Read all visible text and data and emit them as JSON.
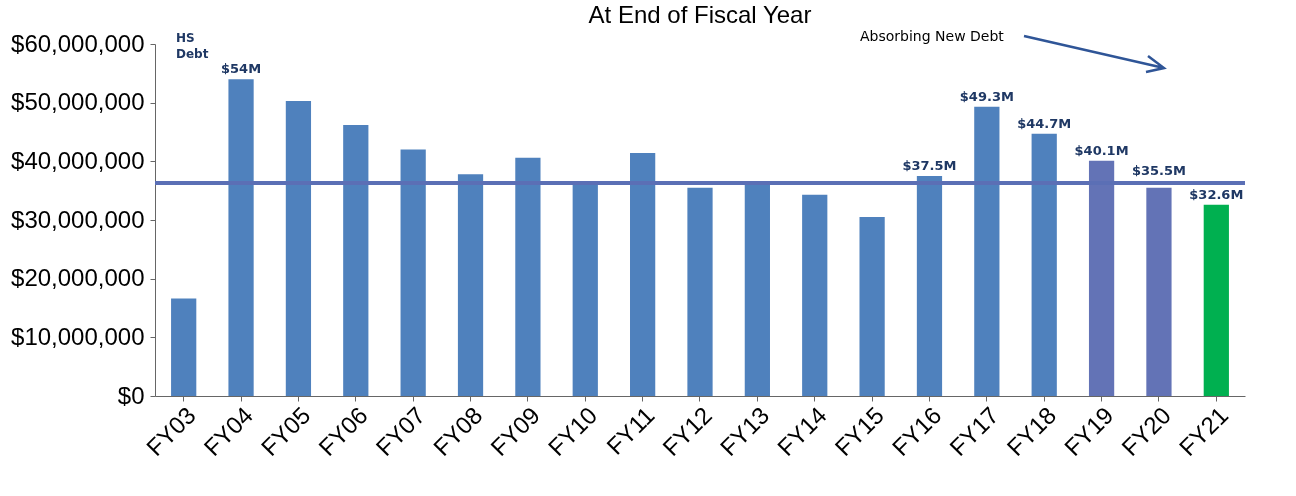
{
  "chart_data": {
    "type": "bar",
    "title": "At End of Fiscal Year",
    "categories": [
      "FY03",
      "FY04",
      "FY05",
      "FY06",
      "FY07",
      "FY08",
      "FY09",
      "FY10",
      "FY11",
      "FY12",
      "FY13",
      "FY14",
      "FY15",
      "FY16",
      "FY17",
      "FY18",
      "FY19",
      "FY20",
      "FY21"
    ],
    "values": [
      16600000,
      54000000,
      50300000,
      46200000,
      42000000,
      37800000,
      40600000,
      36300000,
      41400000,
      35500000,
      36500000,
      34300000,
      30500000,
      37500000,
      49300000,
      44700000,
      40100000,
      35500000,
      32600000
    ],
    "colors": [
      "#4f81bd",
      "#4f81bd",
      "#4f81bd",
      "#4f81bd",
      "#4f81bd",
      "#4f81bd",
      "#4f81bd",
      "#4f81bd",
      "#4f81bd",
      "#4f81bd",
      "#4f81bd",
      "#4f81bd",
      "#4f81bd",
      "#4f81bd",
      "#4f81bd",
      "#4f81bd",
      "#6373b6",
      "#6373b6",
      "#00b050"
    ],
    "value_labels": [
      null,
      "$54M",
      null,
      null,
      null,
      null,
      null,
      null,
      null,
      null,
      null,
      null,
      null,
      "$37.5M",
      "$49.3M",
      "$44.7M",
      "$40.1M",
      "$35.5M",
      "$32.6M"
    ],
    "ylim": [
      0,
      60000000
    ],
    "yticks": [
      {
        "value": 0,
        "label": "$0"
      },
      {
        "value": 10000000,
        "label": "$10,000,000"
      },
      {
        "value": 20000000,
        "label": "$20,000,000"
      },
      {
        "value": 30000000,
        "label": "$30,000,000"
      },
      {
        "value": 40000000,
        "label": "$40,000,000"
      },
      {
        "value": 50000000,
        "label": "$50,000,000"
      },
      {
        "value": 60000000,
        "label": "$60,000,000"
      }
    ],
    "ref_lines": [
      {
        "axis": "y",
        "value": 36300000,
        "color": "#5b6fb5"
      }
    ],
    "annotations": [
      "HS Debt",
      "Absorbing New Debt"
    ],
    "grid": false
  }
}
